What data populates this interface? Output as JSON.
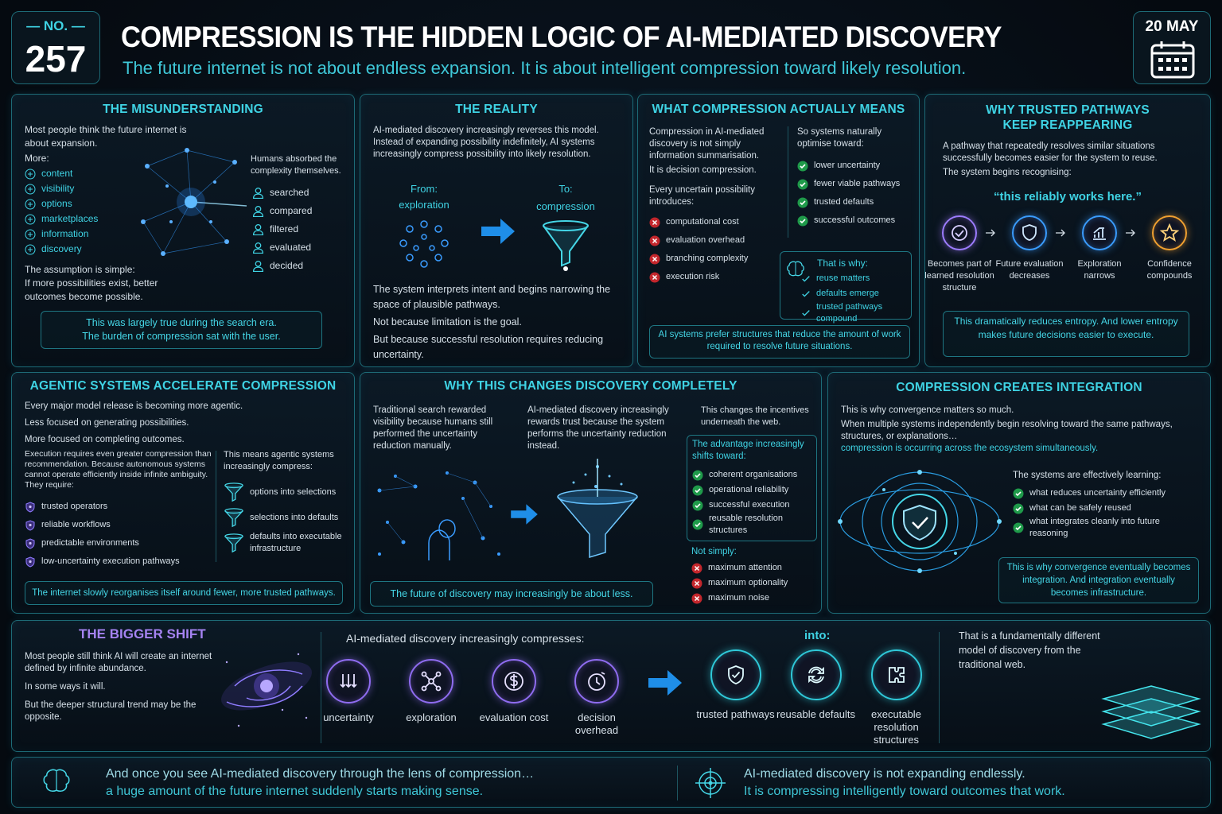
{
  "header": {
    "number_label": "— NO. —",
    "number": "257",
    "title": "COMPRESSION IS THE HIDDEN LOGIC OF AI-MEDIATED DISCOVERY",
    "subtitle": "The future internet is not about endless expansion. It is about intelligent compression toward likely resolution.",
    "date": "20 MAY"
  },
  "misunderstanding": {
    "title": "THE MISUNDERSTANDING",
    "intro": "Most people think the future internet is about expansion.",
    "more_label": "More:",
    "items": [
      "content",
      "visibility",
      "options",
      "marketplaces",
      "information",
      "discovery"
    ],
    "side_intro": "Humans absorbed the complexity themselves.",
    "side_items": [
      "searched",
      "compared",
      "filtered",
      "evaluated",
      "decided"
    ],
    "assumption": "The assumption is simple:",
    "assumption_body": "If more possibilities exist, better outcomes become possible.",
    "callout": [
      "This was largely true during the search era.",
      "The burden of compression sat with the user."
    ]
  },
  "reality": {
    "title": "THE REALITY",
    "intro": "AI-mediated discovery increasingly reverses this model. Instead of expanding possibility indefinitely, AI systems increasingly compress possibility into likely resolution.",
    "from_label": "From:",
    "from": "exploration",
    "to_label": "To:",
    "to": "compression",
    "body": [
      "The system interprets intent and begins narrowing the space of plausible pathways.",
      "Not because limitation is the goal.",
      "But because successful resolution requires reducing uncertainty."
    ]
  },
  "compression_means": {
    "title": "WHAT COMPRESSION ACTUALLY MEANS",
    "intro": "Compression in AI-mediated discovery is not simply information summarisation.",
    "intro2": "It is decision compression.",
    "introduces": "Every uncertain possibility introduces:",
    "costs": [
      "computational cost",
      "evaluation overhead",
      "branching complexity",
      "execution risk"
    ],
    "optimise": "So systems naturally optimise toward:",
    "toward": [
      "lower uncertainty",
      "fewer viable pathways",
      "trusted defaults",
      "successful outcomes"
    ],
    "why_label": "That is why:",
    "why": [
      "reuse matters",
      "defaults emerge",
      "trusted pathways compound"
    ],
    "callout": "AI systems prefer structures that reduce the amount of work required to resolve future situations."
  },
  "trusted": {
    "title": "WHY TRUSTED PATHWAYS KEEP REAPPEARING",
    "intro": "A pathway that repeatedly resolves similar situations successfully becomes easier for the system to reuse.",
    "recognising": "The system begins recognising:",
    "quote": "“this reliably works here.”",
    "steps": [
      "Becomes part of learned resolution structure",
      "Future evaluation decreases",
      "Exploration narrows",
      "Confidence compounds"
    ],
    "callout": "This dramatically reduces entropy. And lower entropy makes future decisions easier to execute."
  },
  "agentic": {
    "title": "AGENTIC SYSTEMS ACCELERATE COMPRESSION",
    "lines": [
      "Every major model release is becoming more agentic.",
      "Less focused on generating possibilities.",
      "More focused on completing outcomes."
    ],
    "body": "Execution requires even greater compression than recommendation. Because autonomous systems cannot operate efficiently inside infinite ambiguity. They require:",
    "requires": [
      "trusted operators",
      "reliable workflows",
      "predictable environments",
      "low-uncertainty execution pathways"
    ],
    "compress_intro": "This means agentic systems increasingly compress:",
    "compress": [
      "options into selections",
      "selections into defaults",
      "defaults into executable infrastructure"
    ],
    "callout": "The internet slowly reorganises itself around fewer, more trusted pathways."
  },
  "why_changes": {
    "title": "WHY THIS CHANGES DISCOVERY COMPLETELY",
    "col1": "Traditional search rewarded visibility because humans still performed the uncertainty reduction manually.",
    "col2": "AI-mediated discovery increasingly rewards trust because the system performs the uncertainty reduction instead.",
    "col3": "This changes the incentives underneath the web.",
    "advantage": "The advantage increasingly shifts toward:",
    "adv_items": [
      "coherent organisations",
      "operational reliability",
      "successful execution",
      "reusable resolution structures"
    ],
    "not_label": "Not simply:",
    "not_items": [
      "maximum attention",
      "maximum optionality",
      "maximum noise"
    ],
    "callout": "The future of discovery may increasingly be about less."
  },
  "integration": {
    "title": "COMPRESSION CREATES INTEGRATION",
    "l1": "This is why convergence matters so much.",
    "l2": "When multiple systems independently begin resolving toward the same pathways, structures, or explanations…",
    "l3": "compression is occurring across the ecosystem simultaneously.",
    "learning": "The systems are effectively learning:",
    "items": [
      "what reduces uncertainty efficiently",
      "what can be safely reused",
      "what integrates cleanly into future reasoning"
    ],
    "callout": "This is why convergence eventually becomes integration. And integration eventually becomes infrastructure."
  },
  "bigger_shift": {
    "title": "THE BIGGER SHIFT",
    "lines": [
      "Most people still think AI will create an internet defined by infinite abundance.",
      "In some ways it will.",
      "But the deeper structural trend may be the opposite."
    ],
    "compresses_label": "AI-mediated discovery increasingly compresses:",
    "from_items": [
      "uncertainty",
      "exploration",
      "evaluation cost",
      "decision overhead"
    ],
    "into_label": "into:",
    "into_items": [
      "trusted pathways",
      "reusable defaults",
      "executable resolution structures"
    ],
    "conclusion": "That is a fundamentally different model of discovery from the traditional web."
  },
  "footer": {
    "left": [
      "And once you see AI-mediated discovery through the lens of compression…",
      "a huge amount of the future internet suddenly starts making sense."
    ],
    "right": [
      "AI-mediated discovery is not expanding endlessly.",
      "It is compressing intelligently toward outcomes that work."
    ]
  }
}
